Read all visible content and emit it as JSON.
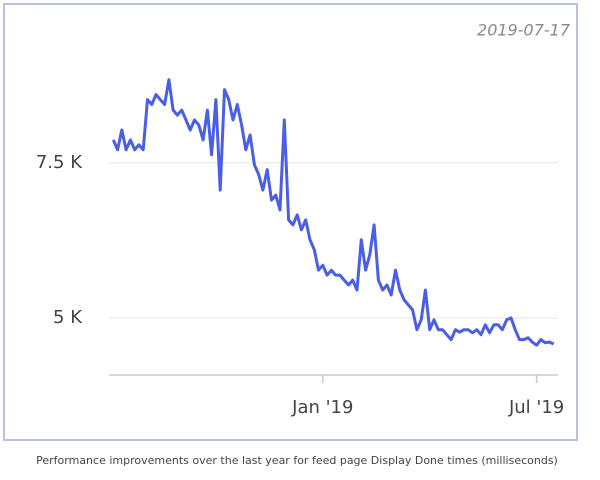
{
  "chart_data": {
    "type": "line",
    "annotation": "2019-07-17",
    "caption": "Performance improvements over the last year for feed page Display Done times (milliseconds)",
    "x": [
      2018.51,
      2018.52,
      2018.53,
      2018.54,
      2018.55,
      2018.56,
      2018.57,
      2018.58,
      2018.59,
      2018.6,
      2018.61,
      2018.62,
      2018.63,
      2018.64,
      2018.65,
      2018.66,
      2018.67,
      2018.68,
      2018.69,
      2018.7,
      2018.71,
      2018.72,
      2018.73,
      2018.74,
      2018.75,
      2018.76,
      2018.77,
      2018.78,
      2018.79,
      2018.8,
      2018.81,
      2018.82,
      2018.83,
      2018.84,
      2018.85,
      2018.86,
      2018.87,
      2018.88,
      2018.89,
      2018.9,
      2018.91,
      2018.92,
      2018.93,
      2018.94,
      2018.95,
      2018.96,
      2018.97,
      2018.98,
      2018.99,
      2019.0,
      2019.01,
      2019.02,
      2019.03,
      2019.04,
      2019.05,
      2019.06,
      2019.07,
      2019.08,
      2019.09,
      2019.1,
      2019.11,
      2019.12,
      2019.13,
      2019.14,
      2019.15,
      2019.16,
      2019.17,
      2019.18,
      2019.19,
      2019.2,
      2019.21,
      2019.22,
      2019.23,
      2019.24,
      2019.25,
      2019.26,
      2019.27,
      2019.28,
      2019.29,
      2019.3,
      2019.31,
      2019.32,
      2019.33,
      2019.34,
      2019.35,
      2019.36,
      2019.37,
      2019.38,
      2019.39,
      2019.4,
      2019.41,
      2019.42,
      2019.43,
      2019.44,
      2019.45,
      2019.46,
      2019.47,
      2019.48,
      2019.49,
      2019.5,
      2019.51,
      2019.52,
      2019.53,
      2019.54
    ],
    "series": [
      {
        "color": "#4a5ee6",
        "values": [
          7870,
          7710,
          8030,
          7710,
          7870,
          7710,
          7790,
          7710,
          8520,
          8440,
          8600,
          8520,
          8440,
          8840,
          8350,
          8270,
          8350,
          8190,
          8030,
          8190,
          8110,
          7870,
          8350,
          7630,
          8520,
          7060,
          8680,
          8520,
          8190,
          8440,
          8110,
          7710,
          7950,
          7470,
          7310,
          7060,
          7390,
          6900,
          6980,
          6740,
          8190,
          6580,
          6500,
          6660,
          6420,
          6580,
          6260,
          6100,
          5770,
          5850,
          5690,
          5770,
          5690,
          5690,
          5610,
          5530,
          5610,
          5450,
          6260,
          5770,
          6020,
          6500,
          5610,
          5450,
          5530,
          5370,
          5770,
          5450,
          5290,
          5210,
          5130,
          4810,
          4970,
          5450,
          4810,
          4970,
          4810,
          4810,
          4730,
          4650,
          4810,
          4770,
          4810,
          4810,
          4760,
          4810,
          4730,
          4890,
          4760,
          4890,
          4890,
          4810,
          4970,
          5000,
          4810,
          4650,
          4650,
          4680,
          4610,
          4560,
          4650,
          4600,
          4610,
          4580
        ]
      }
    ],
    "xlim": [
      2018.5,
      2019.55
    ],
    "xticks": [
      {
        "value": 2019.0,
        "label": "Jan '19"
      },
      {
        "value": 2019.5,
        "label": "Jul '19"
      }
    ],
    "ylim": [
      4080,
      9480
    ],
    "yticks": [
      {
        "value": 5000,
        "label": "5 K"
      },
      {
        "value": 7500,
        "label": "7.5 K"
      }
    ],
    "grid": true
  }
}
